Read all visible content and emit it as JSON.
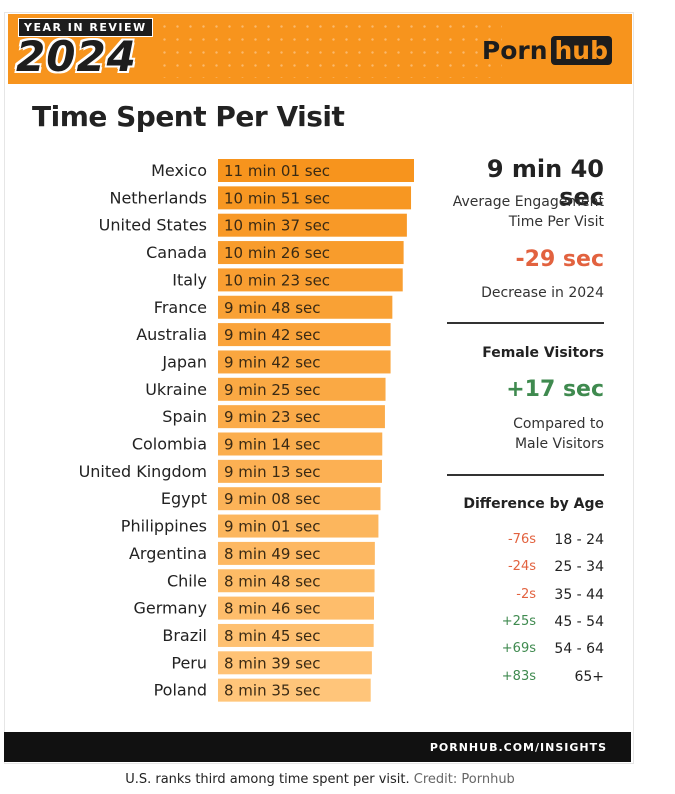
{
  "header": {
    "badge": "YEAR IN REVIEW",
    "year": "2024",
    "logo_left": "Porn",
    "logo_right": "hub"
  },
  "title": "Time Spent Per Visit",
  "chart_data": {
    "type": "bar",
    "orientation": "horizontal",
    "title": "Time Spent Per Visit",
    "categories": [
      "Mexico",
      "Netherlands",
      "United States",
      "Canada",
      "Italy",
      "France",
      "Australia",
      "Japan",
      "Ukraine",
      "Spain",
      "Colombia",
      "United Kingdom",
      "Egypt",
      "Philippines",
      "Argentina",
      "Chile",
      "Germany",
      "Brazil",
      "Peru",
      "Poland"
    ],
    "values_seconds": [
      661,
      651,
      637,
      626,
      623,
      588,
      582,
      582,
      565,
      563,
      554,
      553,
      548,
      541,
      529,
      528,
      526,
      525,
      519,
      515
    ],
    "labels": [
      "11 min 01 sec",
      "10 min 51 sec",
      "10 min 37 sec",
      "10 min 26 sec",
      "10 min 23 sec",
      "9 min 48 sec",
      "9 min 42 sec",
      "9 min 42 sec",
      "9 min 25 sec",
      "9 min 23 sec",
      "9 min 14 sec",
      "9 min 13 sec",
      "9 min 08 sec",
      "9 min 01 sec",
      "8 min 49 sec",
      "8 min 48 sec",
      "8 min 46 sec",
      "8 min 45 sec",
      "8 min 39 sec",
      "8 min 35 sec"
    ],
    "xlim": [
      0,
      661
    ],
    "colors": {
      "dark": "#f7941d",
      "light": "#ffc57a"
    }
  },
  "summary": {
    "average_value": "9 min 40 sec",
    "average_label_line1": "Average Engagement",
    "average_label_line2": "Time Per Visit",
    "change_value": "-29 sec",
    "change_label": "Decrease in 2024",
    "female_header": "Female Visitors",
    "female_value": "+17 sec",
    "female_label_line1": "Compared to",
    "female_label_line2": "Male Visitors",
    "age_header": "Difference by Age",
    "age_rows": [
      {
        "diff": "-76s",
        "range": "18 - 24",
        "sign": "neg"
      },
      {
        "diff": "-24s",
        "range": "25 - 34",
        "sign": "neg"
      },
      {
        "diff": "-2s",
        "range": "35 - 44",
        "sign": "neg"
      },
      {
        "diff": "+25s",
        "range": "45 - 54",
        "sign": "pos"
      },
      {
        "diff": "+69s",
        "range": "54 - 64",
        "sign": "pos"
      },
      {
        "diff": "+83s",
        "range": "65+",
        "sign": "pos"
      }
    ]
  },
  "footer": "PORNHUB.COM/INSIGHTS",
  "caption": {
    "text": "U.S. ranks third among time spent per visit.",
    "credit": "Credit: Pornhub"
  }
}
